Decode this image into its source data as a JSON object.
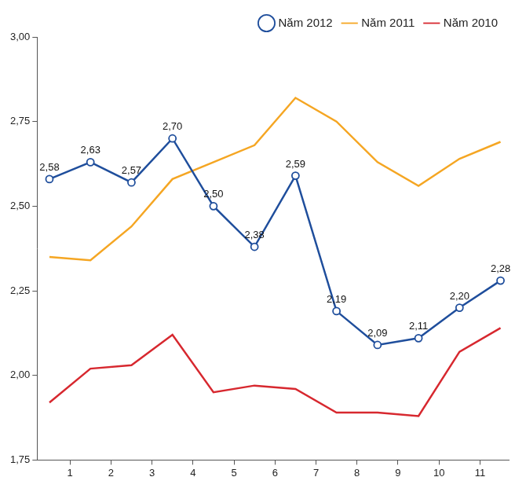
{
  "chart_data": {
    "type": "line",
    "x": [
      0.5,
      1.5,
      2.5,
      3.5,
      4.5,
      5.5,
      6.5,
      7.5,
      8.5,
      9.5,
      10.5,
      11.5
    ],
    "xlim": [
      0.2,
      11.7
    ],
    "xticks": [
      1,
      2,
      3,
      4,
      5,
      6,
      7,
      8,
      9,
      10,
      11
    ],
    "ylim": [
      1.75,
      3.0
    ],
    "yticks": [
      {
        "value": 1.75,
        "label": "1,75"
      },
      {
        "value": 2.0,
        "label": "2,00"
      },
      {
        "value": 2.25,
        "label": "2,25"
      },
      {
        "value": 2.5,
        "label": "2,50"
      },
      {
        "value": 2.75,
        "label": "2,75"
      },
      {
        "value": 3.0,
        "label": "3,00"
      }
    ],
    "grid": false,
    "legend": "top-right",
    "series": [
      {
        "name": "Năm 2012",
        "color": "#1f4e9c",
        "marker": "circle",
        "line_style": "solid",
        "data_labels": true,
        "values": [
          2.58,
          2.63,
          2.57,
          2.7,
          2.5,
          2.38,
          2.59,
          2.19,
          2.09,
          2.11,
          2.2,
          2.28
        ],
        "value_labels": [
          "2,58",
          "2,63",
          "2,57",
          "2,70",
          "2,50",
          "2,38",
          "2,59",
          "2,19",
          "2,09",
          "2,11",
          "2,20",
          "2,28"
        ]
      },
      {
        "name": "Năm 2011",
        "color": "#f5a623",
        "marker": "none",
        "line_style": "solid",
        "values": [
          2.35,
          2.34,
          2.44,
          2.58,
          2.63,
          2.68,
          2.82,
          2.75,
          2.63,
          2.56,
          2.64,
          2.69
        ]
      },
      {
        "name": "Năm 2010",
        "color": "#d7282f",
        "marker": "none",
        "line_style": "solid",
        "values": [
          1.92,
          2.02,
          2.03,
          2.12,
          1.95,
          1.97,
          1.96,
          1.89,
          1.89,
          1.88,
          2.07,
          2.14
        ]
      }
    ]
  }
}
